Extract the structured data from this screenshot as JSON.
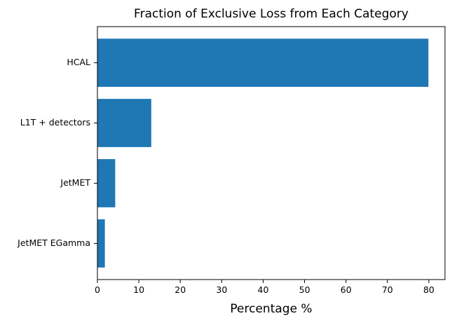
{
  "chart_data": {
    "type": "bar",
    "orientation": "horizontal",
    "title": "Fraction of Exclusive Loss from Each Category",
    "xlabel": "Percentage %",
    "ylabel": "",
    "categories": [
      "JetMET EGamma",
      "JetMET",
      "L1T + detectors",
      "HCAL"
    ],
    "values": [
      1.8,
      4.3,
      13.0,
      79.9
    ],
    "xlim": [
      0,
      83.9
    ],
    "xticks": [
      0,
      10,
      20,
      30,
      40,
      50,
      60,
      70,
      80
    ],
    "bar_color": "#1f77b4",
    "grid": false,
    "legend": "none"
  }
}
